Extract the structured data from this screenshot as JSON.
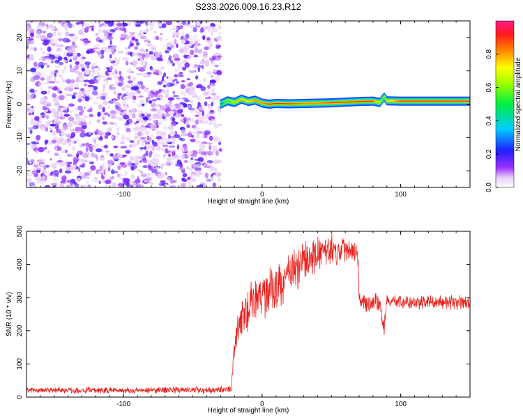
{
  "title": "S233.2026.009.16.23.R12",
  "colors": {
    "background": "#ffffff",
    "noise": "#8a2be2",
    "snr_line": "#e8201c",
    "axes": "#000000"
  },
  "chart_data": [
    {
      "type": "heatmap",
      "panel": "top",
      "xlabel": "Height of straight line (km)",
      "ylabel": "Frequency (Hz)",
      "xlim": [
        -170,
        150
      ],
      "ylim": [
        -25,
        25
      ],
      "xticks": [
        "-100",
        "0",
        "100"
      ],
      "xtick_values": [
        -100,
        0,
        100
      ],
      "yticks": [
        "20",
        "10",
        "0",
        "-10",
        "-20"
      ],
      "ytick_values": [
        20,
        10,
        0,
        -10,
        -20
      ],
      "noise_region_x": [
        -170,
        -30
      ],
      "ridge": {
        "x": [
          -30,
          -25,
          -20,
          -15,
          -10,
          -5,
          0,
          5,
          10,
          20,
          30,
          40,
          50,
          60,
          70,
          80,
          85,
          88,
          90,
          100,
          110,
          120,
          130,
          140,
          150
        ],
        "freq": [
          0.0,
          1.0,
          0.5,
          1.5,
          0.8,
          1.2,
          0.3,
          0.0,
          0.2,
          0.1,
          0.2,
          0.3,
          0.4,
          0.6,
          0.8,
          0.9,
          0.5,
          2.2,
          1.0,
          0.9,
          0.9,
          0.9,
          0.9,
          0.9,
          0.9
        ],
        "amplitude": [
          0.5,
          0.65,
          0.75,
          0.8,
          0.85,
          0.9,
          0.9,
          0.95,
          0.95,
          0.95,
          0.9,
          0.9,
          0.95,
          0.95,
          0.95,
          0.95,
          0.7,
          0.6,
          0.8,
          0.95,
          0.95,
          0.95,
          0.95,
          0.95,
          0.95
        ]
      },
      "colorbar": {
        "label": "Normalized spectral amplitude",
        "ticks": [
          "0.0",
          "0.2",
          "0.4",
          "0.6",
          "0.8"
        ],
        "tick_values": [
          0.0,
          0.2,
          0.4,
          0.6,
          0.8
        ],
        "range": [
          0,
          1
        ]
      }
    },
    {
      "type": "line",
      "panel": "bottom",
      "xlabel": "Height of straight line (km)",
      "ylabel": "SNR (10 * v/v)",
      "xlim": [
        -170,
        150
      ],
      "ylim": [
        0,
        500
      ],
      "xticks": [
        "-100",
        "0",
        "100"
      ],
      "xtick_values": [
        -100,
        0,
        100
      ],
      "yticks": [
        "0",
        "100",
        "200",
        "300",
        "400",
        "500"
      ],
      "ytick_values": [
        0,
        100,
        200,
        300,
        400,
        500
      ],
      "series": [
        {
          "x": [
            -170,
            -150,
            -130,
            -110,
            -90,
            -70,
            -50,
            -30,
            -22,
            -21,
            -18,
            -15,
            -12,
            -10,
            -8,
            -5,
            0,
            5,
            10,
            15,
            20,
            25,
            30,
            35,
            40,
            45,
            50,
            55,
            60,
            65,
            69,
            70,
            72,
            75,
            80,
            85,
            88,
            90,
            92,
            95,
            100,
            110,
            120,
            130,
            140,
            150
          ],
          "y": [
            20,
            22,
            20,
            21,
            20,
            22,
            21,
            22,
            25,
            110,
            200,
            230,
            250,
            260,
            275,
            295,
            310,
            320,
            330,
            350,
            370,
            390,
            410,
            420,
            430,
            440,
            445,
            440,
            450,
            448,
            445,
            310,
            285,
            285,
            285,
            285,
            200,
            300,
            285,
            290,
            285,
            285,
            285,
            285,
            285,
            280
          ],
          "noise_amp": [
            12,
            12,
            12,
            12,
            12,
            12,
            12,
            12,
            12,
            40,
            60,
            70,
            70,
            75,
            80,
            80,
            80,
            80,
            80,
            80,
            80,
            80,
            75,
            70,
            65,
            60,
            55,
            55,
            55,
            50,
            45,
            35,
            30,
            30,
            30,
            35,
            40,
            30,
            25,
            25,
            25,
            25,
            25,
            25,
            25,
            25
          ]
        }
      ]
    }
  ]
}
